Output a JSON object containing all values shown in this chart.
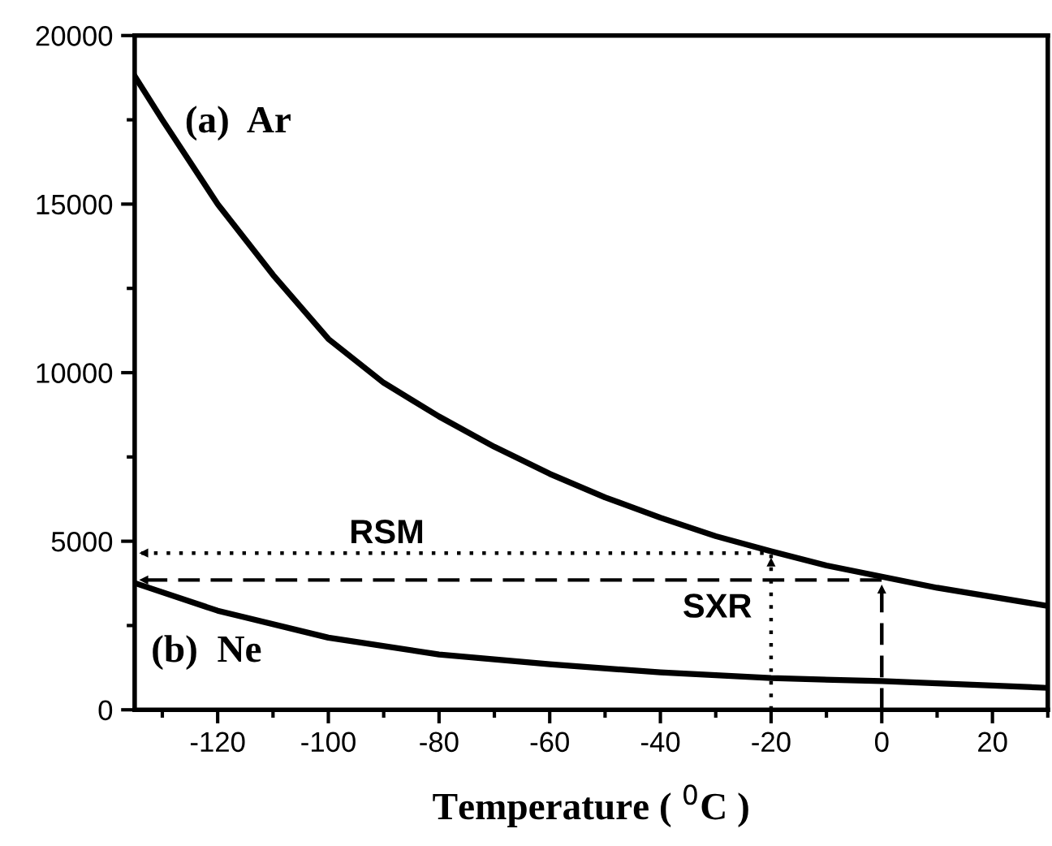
{
  "chart_data": {
    "type": "line",
    "xlabel": "Temperature ( $^{0}$C )",
    "xlim": [
      -135,
      30
    ],
    "xticks": [
      -120,
      -100,
      -80,
      -60,
      -40,
      -20,
      0,
      20
    ],
    "ylim": [
      0,
      20000
    ],
    "yticks": [
      0,
      5000,
      10000,
      15000,
      20000
    ],
    "grid": false,
    "legend": false,
    "marker": "none",
    "series": [
      {
        "color": "#000000",
        "line_style": "solid",
        "x": [
          -135,
          -130,
          -120,
          -110,
          -100,
          -90,
          -80,
          -70,
          -60,
          -50,
          -40,
          -30,
          -20,
          -10,
          0,
          10,
          20,
          30
        ],
        "values": [
          18800,
          17500,
          15000,
          12900,
          11000,
          9700,
          8700,
          7800,
          7000,
          6300,
          5700,
          5150,
          4700,
          4280,
          3950,
          3620,
          3350,
          3080
        ]
      },
      {
        "color": "#000000",
        "line_style": "solid",
        "x": [
          -135,
          -120,
          -100,
          -80,
          -60,
          -40,
          -20,
          0,
          20,
          30
        ],
        "values": [
          3760,
          2940,
          2140,
          1640,
          1350,
          1110,
          940,
          850,
          720,
          650
        ]
      },
      {
        "color": "#000000",
        "line_style": "dotted",
        "x": [
          -20,
          -20,
          -135
        ],
        "values": [
          0,
          4650,
          4650
        ]
      },
      {
        "color": "#000000",
        "line_style": "dashed",
        "x": [
          0,
          0,
          -135
        ],
        "values": [
          0,
          3850,
          3850
        ]
      }
    ],
    "annotations": [
      "(a)  Ar",
      "(b)  Ne",
      "RSM",
      "SXR"
    ]
  }
}
